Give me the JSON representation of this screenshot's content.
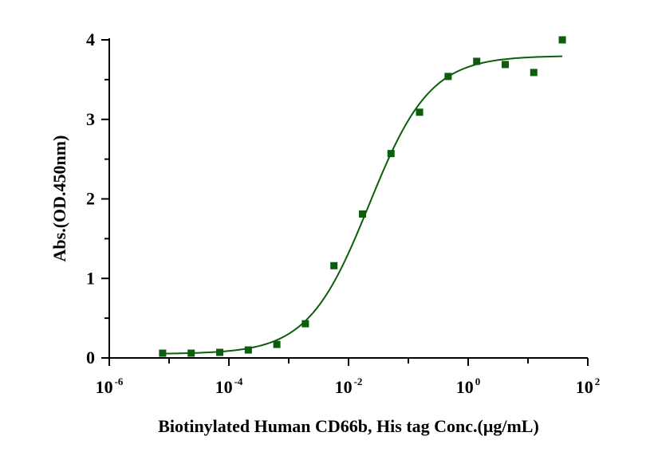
{
  "chart_data": {
    "type": "scatter",
    "title": "",
    "xlabel": "Biotinylated Human CD66b, His tag Conc.(μg/mL)",
    "ylabel": "Abs.(OD.450nm)",
    "x_scale": "log10",
    "xlim": [
      1e-06,
      100
    ],
    "ylim": [
      0,
      4
    ],
    "x_ticks": [
      {
        "base": "10",
        "exp": "-6"
      },
      {
        "base": "10",
        "exp": "-4"
      },
      {
        "base": "10",
        "exp": "-2"
      },
      {
        "base": "10",
        "exp": "0"
      },
      {
        "base": "10",
        "exp": "2"
      }
    ],
    "y_ticks": [
      "0",
      "1",
      "2",
      "3",
      "4"
    ],
    "grid": false,
    "marker_color": "#0b5e0b",
    "curve_color": "#0b5e0b",
    "series": [
      {
        "points": [
          {
            "x": 7.8e-06,
            "y": 0.06
          },
          {
            "x": 2.34e-05,
            "y": 0.06
          },
          {
            "x": 7.03e-05,
            "y": 0.07
          },
          {
            "x": 0.000211,
            "y": 0.1
          },
          {
            "x": 0.000633,
            "y": 0.17
          },
          {
            "x": 0.0019,
            "y": 0.43
          },
          {
            "x": 0.0057,
            "y": 1.16
          },
          {
            "x": 0.0171,
            "y": 1.81
          },
          {
            "x": 0.0513,
            "y": 2.57
          },
          {
            "x": 0.154,
            "y": 3.09
          },
          {
            "x": 0.462,
            "y": 3.54
          },
          {
            "x": 1.39,
            "y": 3.73
          },
          {
            "x": 4.17,
            "y": 3.69
          },
          {
            "x": 12.5,
            "y": 3.59
          },
          {
            "x": 37.5,
            "y": 4.0
          }
        ],
        "fit": {
          "model": "4PL",
          "bottom": 0.05,
          "top": 3.8,
          "ec50": 0.022,
          "hill": 0.85
        }
      }
    ]
  }
}
